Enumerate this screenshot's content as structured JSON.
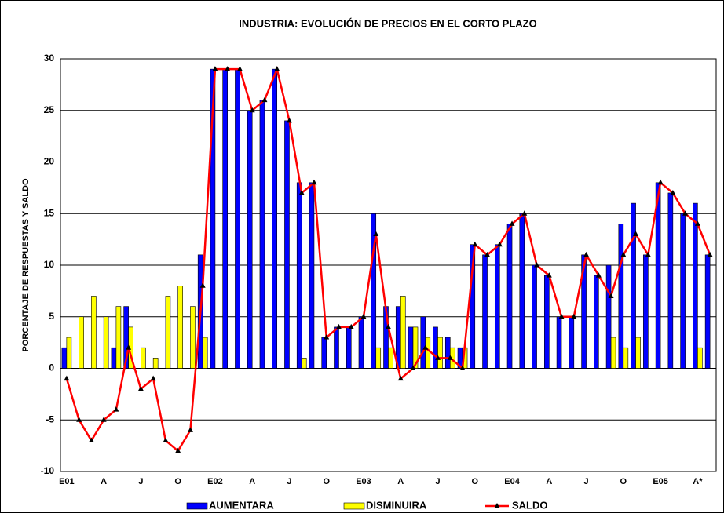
{
  "chart_data": {
    "type": "bar_line",
    "title": "INDUSTRIA: EVOLUCIÓN DE PRECIOS EN EL CORTO PLAZO",
    "y_label": "PORCENTAJE DE RESPUESTAS Y SALDO",
    "categories": [
      "E01",
      null,
      null,
      "A",
      null,
      null,
      "J",
      null,
      null,
      "O",
      null,
      null,
      "E02",
      null,
      null,
      "A",
      null,
      null,
      "J",
      null,
      null,
      "O",
      null,
      null,
      "E03",
      null,
      null,
      "A",
      null,
      null,
      "J",
      null,
      null,
      "O",
      null,
      null,
      "E04",
      null,
      null,
      "A",
      null,
      null,
      "J",
      null,
      null,
      "O",
      null,
      null,
      "E05",
      null,
      null,
      "A*",
      null
    ],
    "series": [
      {
        "name": "AUMENTARA",
        "type": "bar",
        "color": "#0000ff",
        "values": [
          2,
          0,
          0,
          0,
          2,
          6,
          0,
          0,
          0,
          0,
          0,
          11,
          29,
          29,
          29,
          25,
          26,
          29,
          24,
          18,
          18,
          3,
          4,
          4,
          5,
          15,
          6,
          6,
          4,
          5,
          4,
          3,
          2,
          12,
          11,
          12,
          14,
          15,
          10,
          9,
          5,
          5,
          11,
          9,
          10,
          14,
          16,
          11,
          18,
          17,
          15,
          16,
          11
        ]
      },
      {
        "name": "DISMINUIRA",
        "type": "bar",
        "color": "#ffff00",
        "values": [
          3,
          5,
          7,
          5,
          6,
          4,
          2,
          1,
          7,
          8,
          6,
          3,
          0,
          0,
          0,
          0,
          0,
          0,
          0,
          1,
          0,
          0,
          0,
          0,
          0,
          2,
          2,
          7,
          4,
          3,
          3,
          2,
          2,
          0,
          0,
          0,
          0,
          0,
          0,
          0,
          0,
          0,
          0,
          0,
          3,
          2,
          3,
          0,
          0,
          0,
          0,
          2,
          0
        ]
      },
      {
        "name": "SALDO",
        "type": "line",
        "color": "#ff0000",
        "values": [
          -1,
          -5,
          -7,
          -5,
          -4,
          2,
          -2,
          -1,
          -7,
          -8,
          -6,
          8,
          29,
          29,
          29,
          25,
          26,
          29,
          24,
          17,
          18,
          3,
          4,
          4,
          5,
          13,
          4,
          -1,
          0,
          2,
          1,
          1,
          0,
          12,
          11,
          12,
          14,
          15,
          10,
          9,
          5,
          5,
          11,
          9,
          7,
          11,
          13,
          11,
          18,
          17,
          15,
          14,
          11
        ]
      }
    ],
    "ylim": [
      -10,
      30
    ],
    "yticks": [
      -10,
      -5,
      0,
      5,
      10,
      15,
      20,
      25,
      30
    ],
    "grid": true
  }
}
